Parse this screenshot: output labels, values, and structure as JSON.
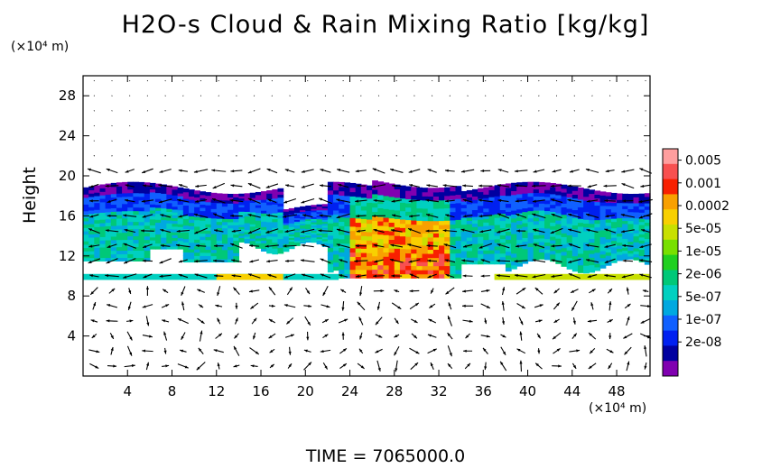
{
  "title": "H2O-s Cloud & Rain Mixing Ratio [kg/kg]",
  "yunit": "(×10⁴ m)",
  "xunit": "(×10⁴ m)",
  "ylabel": "Height",
  "time_label": "TIME  =  7065000.0",
  "chart_data": {
    "type": "heatmap",
    "title": "H2O-s Cloud & Rain Mixing Ratio [kg/kg]",
    "xlabel": "",
    "ylabel": "Height",
    "x_unit": "(×10⁴ m)",
    "y_unit": "(×10⁴ m)",
    "xlim": [
      0,
      51
    ],
    "ylim": [
      0,
      30
    ],
    "x_ticks": [
      4,
      8,
      12,
      16,
      20,
      24,
      28,
      32,
      36,
      40,
      44,
      48
    ],
    "y_ticks": [
      4,
      8,
      12,
      16,
      20,
      24,
      28
    ],
    "grid": false,
    "overlay": "wind vectors",
    "colorbar": {
      "labels": [
        "0.005",
        "0.001",
        "0.0002",
        "5e-05",
        "1e-05",
        "2e-06",
        "5e-07",
        "1e-07",
        "2e-08"
      ],
      "colors": [
        "#ff9e9e",
        "#f85050",
        "#f82000",
        "#f8a000",
        "#f8d000",
        "#c8e000",
        "#78e000",
        "#20d020",
        "#00c878",
        "#00d0c0",
        "#00a8e0",
        "#1060ff",
        "#0020f0",
        "#0000a0",
        "#8000b0"
      ]
    }
  }
}
